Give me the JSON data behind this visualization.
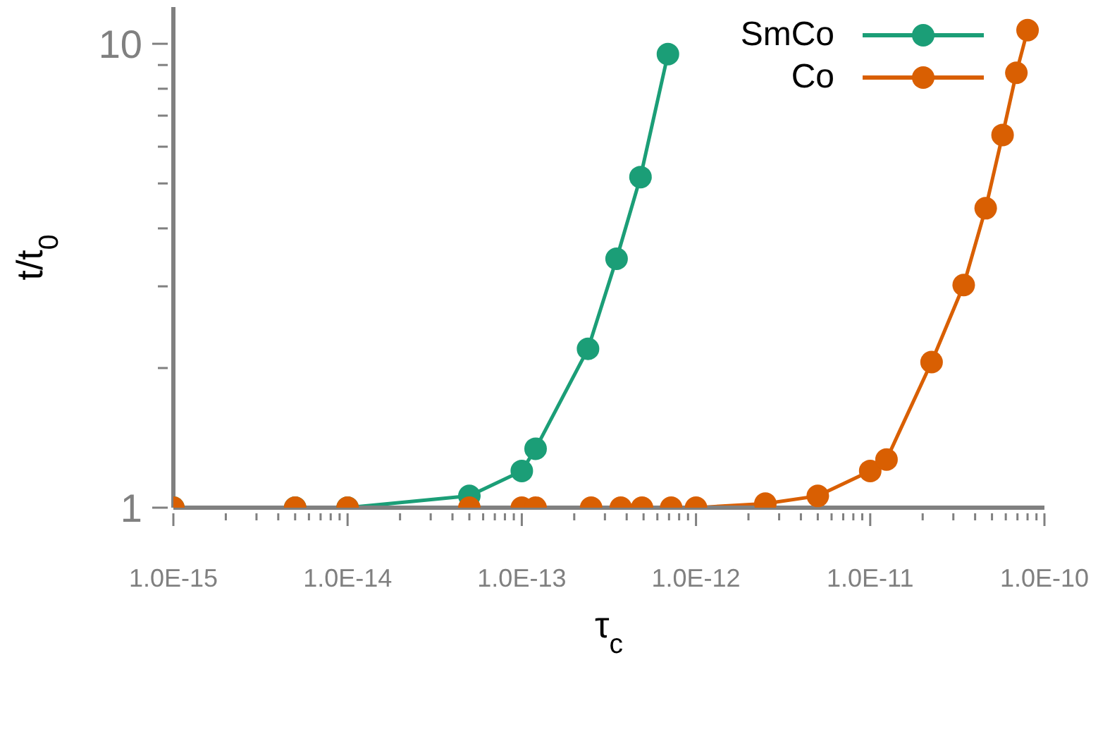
{
  "chart_data": {
    "type": "line",
    "xlabel": "τ$_{c}$",
    "ylabel": "t/t$_{0}$",
    "log": "xy",
    "grid": false,
    "legend": "top right",
    "marker": "circle",
    "line_style": "solid",
    "xlim": [
      1e-15,
      1e-10
    ],
    "ylim": [
      1,
      12
    ],
    "xticks": [
      {
        "value": 1e-15,
        "label": "1.0E-15"
      },
      {
        "value": 2e-15,
        "label": null
      },
      {
        "value": 3e-15,
        "label": null
      },
      {
        "value": 4e-15,
        "label": null
      },
      {
        "value": 5e-15,
        "label": null
      },
      {
        "value": 6e-15,
        "label": null
      },
      {
        "value": 7e-15,
        "label": null
      },
      {
        "value": 8e-15,
        "label": null
      },
      {
        "value": 9e-15,
        "label": null
      },
      {
        "value": 1e-14,
        "label": "1.0E-14"
      },
      {
        "value": 2e-14,
        "label": null
      },
      {
        "value": 3e-14,
        "label": null
      },
      {
        "value": 4e-14,
        "label": null
      },
      {
        "value": 5e-14,
        "label": null
      },
      {
        "value": 6e-14,
        "label": null
      },
      {
        "value": 7e-14,
        "label": null
      },
      {
        "value": 8e-14,
        "label": null
      },
      {
        "value": 9e-14,
        "label": null
      },
      {
        "value": 1e-13,
        "label": "1.0E-13"
      },
      {
        "value": 2e-13,
        "label": null
      },
      {
        "value": 3e-13,
        "label": null
      },
      {
        "value": 4e-13,
        "label": null
      },
      {
        "value": 5e-13,
        "label": null
      },
      {
        "value": 6e-13,
        "label": null
      },
      {
        "value": 7e-13,
        "label": null
      },
      {
        "value": 8e-13,
        "label": null
      },
      {
        "value": 9e-13,
        "label": null
      },
      {
        "value": 1e-12,
        "label": "1.0E-12"
      },
      {
        "value": 2e-12,
        "label": null
      },
      {
        "value": 3e-12,
        "label": null
      },
      {
        "value": 4e-12,
        "label": null
      },
      {
        "value": 5e-12,
        "label": null
      },
      {
        "value": 6e-12,
        "label": null
      },
      {
        "value": 7e-12,
        "label": null
      },
      {
        "value": 8e-12,
        "label": null
      },
      {
        "value": 9e-12,
        "label": null
      },
      {
        "value": 1e-11,
        "label": "1.0E-11"
      },
      {
        "value": 2e-11,
        "label": null
      },
      {
        "value": 3e-11,
        "label": null
      },
      {
        "value": 4e-11,
        "label": null
      },
      {
        "value": 5e-11,
        "label": null
      },
      {
        "value": 6e-11,
        "label": null
      },
      {
        "value": 7e-11,
        "label": null
      },
      {
        "value": 8e-11,
        "label": null
      },
      {
        "value": 9e-11,
        "label": null
      },
      {
        "value": 1e-10,
        "label": "1.0E-10"
      }
    ],
    "yticks": [
      1,
      {
        "value": 2,
        "label": null
      },
      {
        "value": 3,
        "label": null
      },
      {
        "value": 4,
        "label": null
      },
      {
        "value": 5,
        "label": null
      },
      {
        "value": 6,
        "label": null
      },
      {
        "value": 7,
        "label": null
      },
      {
        "value": 8,
        "label": null
      },
      {
        "value": 9,
        "label": null
      },
      10
    ],
    "series": [
      {
        "name": "SmCo",
        "color": "#1b9e77",
        "x": [
          1e-15,
          5e-15,
          1e-14,
          5e-14,
          1e-13,
          1.2e-13,
          2.4e-13,
          3.5e-13,
          4.8e-13,
          6.9e-13
        ],
        "values": [
          1,
          1,
          1,
          1.06,
          1.2,
          1.34,
          2.2,
          3.44,
          5.16,
          9.5
        ]
      },
      {
        "name": "Co",
        "color": "#d95f02",
        "x": [
          1e-15,
          5e-15,
          1e-14,
          5e-14,
          1e-13,
          1.2e-13,
          2.5e-13,
          3.7e-13,
          4.9e-13,
          7.2e-13,
          1e-12,
          2.5e-12,
          5e-12,
          1e-11,
          1.24e-11,
          2.25e-11,
          3.44e-11,
          4.6e-11,
          5.75e-11,
          6.9e-11,
          8e-11
        ],
        "values": [
          1,
          1,
          1,
          1,
          1,
          1,
          1,
          1,
          1,
          1,
          1,
          1.02,
          1.06,
          1.2,
          1.27,
          2.06,
          3.02,
          4.42,
          6.36,
          8.66,
          10.7
        ]
      }
    ]
  }
}
